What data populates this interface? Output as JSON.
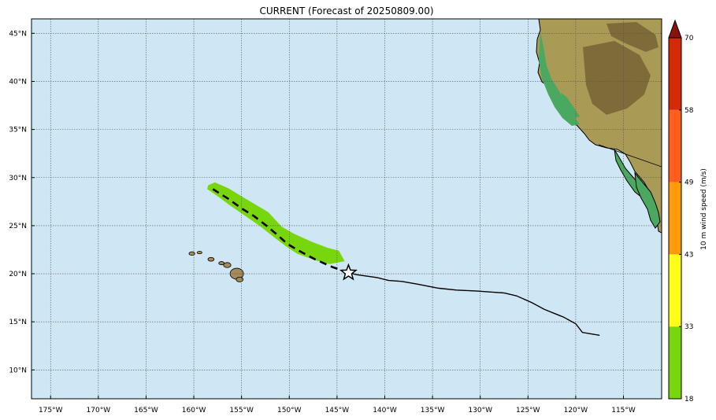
{
  "title": "CURRENT (Forecast of 20250809.00)",
  "map": {
    "lon_range": [
      -177,
      -111
    ],
    "lat_range": [
      7,
      46.5
    ],
    "lon_ticks": [
      -175,
      -170,
      -165,
      -160,
      -155,
      -150,
      -145,
      -140,
      -135,
      -130,
      -125,
      -120,
      -115
    ],
    "lon_labels": [
      "175°W",
      "170°W",
      "165°W",
      "160°W",
      "155°W",
      "150°W",
      "145°W",
      "140°W",
      "135°W",
      "130°W",
      "125°W",
      "120°W",
      "115°W"
    ],
    "lat_ticks": [
      10,
      15,
      20,
      25,
      30,
      35,
      40,
      45
    ],
    "lat_labels": [
      "10°N",
      "15°N",
      "20°N",
      "25°N",
      "30°N",
      "35°N",
      "40°N",
      "45°N"
    ],
    "grid": true,
    "ocean_color": "#cfe6f5"
  },
  "track": {
    "past": [
      [
        -117.5,
        13.6
      ],
      [
        -119.3,
        13.9
      ],
      [
        -120.0,
        14.8
      ],
      [
        -121.3,
        15.5
      ],
      [
        -122.3,
        15.9
      ],
      [
        -123.3,
        16.3
      ],
      [
        -124.6,
        17.0
      ],
      [
        -126.2,
        17.7
      ],
      [
        -127.5,
        18.0
      ],
      [
        -128.9,
        18.1
      ],
      [
        -130.3,
        18.2
      ],
      [
        -132.5,
        18.3
      ],
      [
        -134.4,
        18.5
      ],
      [
        -136.5,
        18.9
      ],
      [
        -138.2,
        19.2
      ],
      [
        -139.6,
        19.3
      ],
      [
        -140.8,
        19.6
      ],
      [
        -142.9,
        19.9
      ],
      [
        -143.8,
        20.1
      ]
    ],
    "forecast": [
      [
        -143.8,
        20.1
      ],
      [
        -145.5,
        20.7
      ],
      [
        -147.3,
        21.5
      ],
      [
        -149.0,
        22.4
      ],
      [
        -150.2,
        23.1
      ],
      [
        -151.2,
        24.0
      ],
      [
        -152.4,
        25.0
      ],
      [
        -153.7,
        26.0
      ],
      [
        -155.0,
        26.8
      ],
      [
        -156.4,
        27.8
      ],
      [
        -158.0,
        28.8
      ]
    ],
    "current_position": [
      -143.8,
      20.1
    ]
  },
  "wind_swath": {
    "color": "#78d70c",
    "polygon": [
      [
        -158.5,
        29.2
      ],
      [
        -157.8,
        29.5
      ],
      [
        -156.4,
        28.9
      ],
      [
        -154.4,
        27.7
      ],
      [
        -152.2,
        26.4
      ],
      [
        -150.8,
        24.9
      ],
      [
        -149.6,
        24.2
      ],
      [
        -147.6,
        23.3
      ],
      [
        -146.0,
        22.7
      ],
      [
        -144.8,
        22.4
      ],
      [
        -144.2,
        21.3
      ],
      [
        -145.8,
        21.0
      ],
      [
        -147.3,
        21.4
      ],
      [
        -149.2,
        22.1
      ],
      [
        -150.4,
        22.9
      ],
      [
        -151.6,
        23.8
      ],
      [
        -153.0,
        24.9
      ],
      [
        -154.6,
        26.0
      ],
      [
        -156.2,
        27.1
      ],
      [
        -157.7,
        28.2
      ],
      [
        -158.6,
        28.8
      ]
    ]
  },
  "colorbar": {
    "label": "10 m wind speed (m/s)",
    "ticks": [
      "18",
      "33",
      "43",
      "49",
      "58",
      "70"
    ],
    "bands": [
      {
        "from": 18,
        "to": 33,
        "color": "#78d70c"
      },
      {
        "from": 33,
        "to": 43,
        "color": "#ffff1a"
      },
      {
        "from": 43,
        "to": 49,
        "color": "#ff9a0a"
      },
      {
        "from": 49,
        "to": 58,
        "color": "#ff5e1f"
      },
      {
        "from": 58,
        "to": 70,
        "color": "#d32a08"
      }
    ],
    "extend_color": "#8a120c"
  },
  "land_colors": {
    "base": "#a99a55",
    "lowland": "#4aa860",
    "highland": "#7f6a3a"
  },
  "islands": {
    "color": "#a38c5a",
    "hawaii": [
      [
        -160.2,
        22.1
      ],
      [
        -159.4,
        22.2
      ],
      [
        -158.2,
        21.5
      ],
      [
        -157.1,
        21.1
      ],
      [
        -156.5,
        20.9
      ],
      [
        -155.5,
        20.0
      ],
      [
        -155.2,
        19.4
      ]
    ]
  }
}
